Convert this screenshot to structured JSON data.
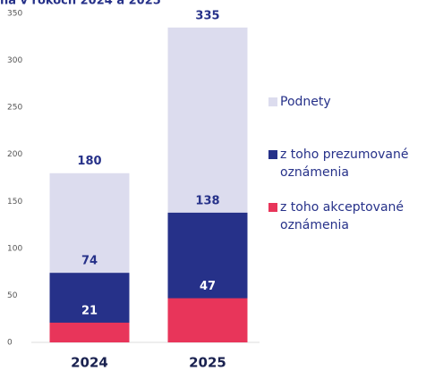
{
  "chart_data": {
    "type": "bar",
    "overlap": true,
    "title": "na v rokoch 2024 a 2025",
    "categories": [
      "2024",
      "2025"
    ],
    "series": [
      {
        "name": "Podnety",
        "color": "#dcdcee",
        "values": [
          180,
          335
        ]
      },
      {
        "name": "z toho prezumované oznámenia",
        "color": "#263189",
        "values": [
          74,
          138
        ]
      },
      {
        "name": "z toho akceptované oznámenia",
        "color": "#e8355a",
        "values": [
          21,
          47
        ]
      }
    ],
    "ylim": [
      0,
      350
    ],
    "yticks": [
      0,
      50,
      100,
      150,
      200,
      250,
      300,
      350
    ],
    "grid": false
  }
}
